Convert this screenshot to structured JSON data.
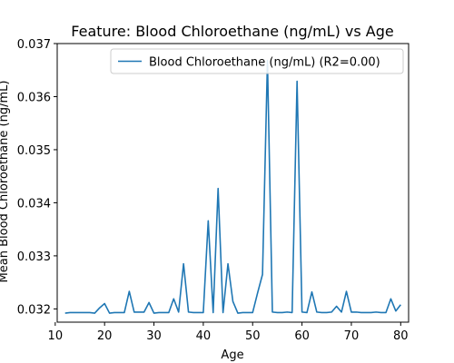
{
  "chart_data": {
    "type": "line",
    "title": "Feature: Blood Chloroethane (ng/mL) vs Age",
    "xlabel": "Age",
    "ylabel": "Mean Blood Chloroethane (ng/mL)",
    "xlim": [
      10.4,
      81.6
    ],
    "ylim": [
      0.03175,
      0.037
    ],
    "x_ticks": [
      10,
      20,
      30,
      40,
      50,
      60,
      70,
      80
    ],
    "y_ticks": [
      0.032,
      0.033,
      0.034,
      0.035,
      0.036,
      0.037
    ],
    "grid": false,
    "legend_position": "top-right",
    "series": [
      {
        "name": "Blood Chloroethane (ng/mL) (R2=0.00)",
        "color": "#1f77b4",
        "x": [
          12,
          13,
          14,
          15,
          16,
          17,
          18,
          19,
          20,
          21,
          22,
          23,
          24,
          25,
          26,
          27,
          28,
          29,
          30,
          31,
          32,
          33,
          34,
          35,
          36,
          37,
          38,
          39,
          40,
          41,
          42,
          43,
          44,
          45,
          46,
          47,
          48,
          49,
          50,
          51,
          52,
          53,
          54,
          55,
          56,
          57,
          58,
          59,
          60,
          61,
          62,
          63,
          64,
          65,
          66,
          67,
          68,
          69,
          70,
          71,
          72,
          73,
          74,
          75,
          76,
          77,
          78,
          79,
          80
        ],
        "values": [
          0.03192,
          0.03193,
          0.03193,
          0.03193,
          0.03193,
          0.03193,
          0.03192,
          0.03202,
          0.0321,
          0.03192,
          0.03193,
          0.03193,
          0.03193,
          0.03233,
          0.03194,
          0.03194,
          0.03194,
          0.03212,
          0.03192,
          0.03193,
          0.03193,
          0.03193,
          0.03219,
          0.03194,
          0.03285,
          0.03194,
          0.03193,
          0.03193,
          0.03193,
          0.03366,
          0.03193,
          0.03427,
          0.03193,
          0.03285,
          0.03214,
          0.03192,
          0.03193,
          0.03193,
          0.03193,
          0.0323,
          0.03265,
          0.03668,
          0.03194,
          0.03193,
          0.03193,
          0.03194,
          0.03193,
          0.03629,
          0.03194,
          0.03193,
          0.03232,
          0.03194,
          0.03193,
          0.03193,
          0.03194,
          0.03205,
          0.03194,
          0.03233,
          0.03194,
          0.03194,
          0.03193,
          0.03193,
          0.03193,
          0.03194,
          0.03193,
          0.03193,
          0.03219,
          0.03196,
          0.03208
        ]
      }
    ]
  }
}
